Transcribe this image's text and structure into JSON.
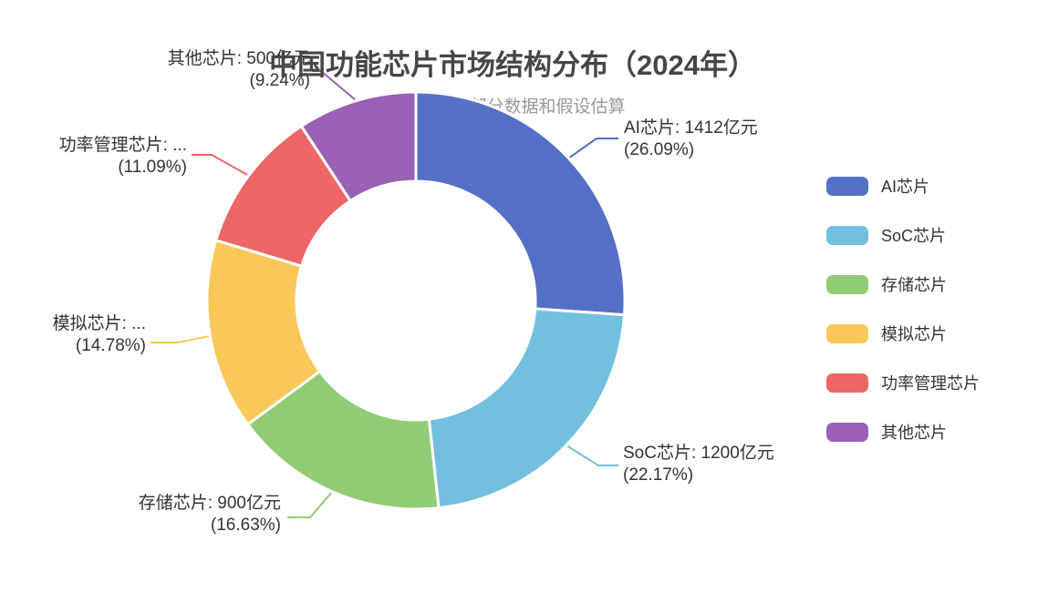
{
  "title": {
    "text": "中国功能芯片市场结构分布（2024年）",
    "subtitle": "注：基于部分数据和假设估算"
  },
  "chart_data": {
    "type": "pie",
    "subtype": "donut",
    "title": "中国功能芯片市场结构分布（2024年）",
    "subtitle": "注：基于部分数据和假设估算",
    "unit": "亿元",
    "legend_position": "right",
    "label_style": "outside with leader lines, name + value + (percent)",
    "items": [
      {
        "name": "AI芯片",
        "value": 1412,
        "percent": 26.09,
        "color": "#5470c6",
        "label_line1": "AI芯片: 1412亿元",
        "label_line2": "(26.09%)"
      },
      {
        "name": "SoC芯片",
        "value": 1200,
        "percent": 22.17,
        "color": "#73c0de",
        "label_line1": "SoC芯片: 1200亿元",
        "label_line2": "(22.17%)"
      },
      {
        "name": "存储芯片",
        "value": 900,
        "percent": 16.63,
        "color": "#91cc75",
        "label_line1": "存储芯片: 900亿元",
        "label_line2": "(16.63%)"
      },
      {
        "name": "模拟芯片",
        "percent": 14.78,
        "color": "#fac858",
        "label_line1": "模拟芯片: ...",
        "label_line2": "(14.78%)"
      },
      {
        "name": "功率管理芯片",
        "percent": 11.09,
        "color": "#ee6666",
        "label_line1": "功率管理芯片: ...",
        "label_line2": "(11.09%)"
      },
      {
        "name": "其他芯片",
        "value": 500,
        "percent": 9.24,
        "color": "#9a60b4",
        "label_line1": "其他芯片: 500亿元",
        "label_line2": "(9.24%)"
      }
    ]
  }
}
